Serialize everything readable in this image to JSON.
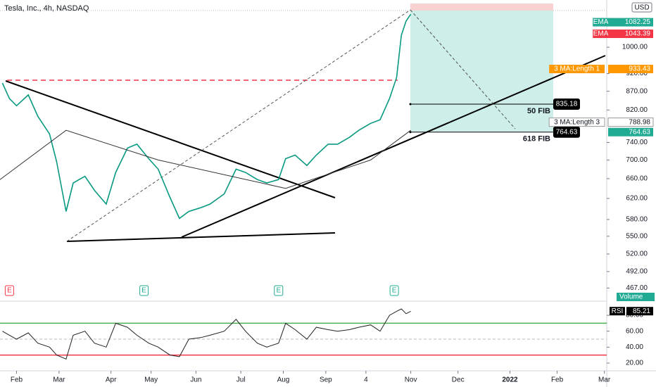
{
  "chart_data": {
    "type": "line",
    "title": "Tesla, Inc., 4h, NASDAQ",
    "currency": "USD",
    "log_scale": true,
    "xlim": [
      -7,
      250
    ],
    "xticks": [
      {
        "value": 0,
        "label": "Feb"
      },
      {
        "value": 18,
        "label": "Mar"
      },
      {
        "value": 40,
        "label": "Apr"
      },
      {
        "value": 57,
        "label": "May"
      },
      {
        "value": 76,
        "label": "Jun"
      },
      {
        "value": 95,
        "label": "Jul"
      },
      {
        "value": 113,
        "label": "Aug"
      },
      {
        "value": 131,
        "label": "Sep"
      },
      {
        "value": 148,
        "label": "4"
      },
      {
        "value": 167,
        "label": "Nov"
      },
      {
        "value": 187,
        "label": "Dec"
      },
      {
        "value": 209,
        "label": "2022"
      },
      {
        "value": 229,
        "label": "Feb"
      },
      {
        "value": 249,
        "label": "Mar"
      }
    ],
    "ylim": [
      451,
      1161
    ],
    "yticks": [
      {
        "value": 1000,
        "label": "1000.00"
      },
      {
        "value": 920,
        "label": "920.00"
      },
      {
        "value": 870,
        "label": "870.00"
      },
      {
        "value": 820,
        "label": "820.00"
      },
      {
        "value": 740,
        "label": "740.00"
      },
      {
        "value": 700,
        "label": "700.00"
      },
      {
        "value": 660,
        "label": "660.00"
      },
      {
        "value": 620,
        "label": "620.00"
      },
      {
        "value": 580,
        "label": "580.00"
      },
      {
        "value": 550,
        "label": "550.00"
      },
      {
        "value": 520,
        "label": "520.00"
      },
      {
        "value": 492,
        "label": "492.00"
      },
      {
        "value": 467,
        "label": "467.00"
      }
    ],
    "x": [
      -6,
      -3,
      0,
      5,
      9,
      14,
      17,
      21,
      24,
      29,
      33,
      38,
      42,
      47,
      51,
      56,
      60,
      65,
      69,
      73,
      78,
      82,
      88,
      93,
      97,
      102,
      106,
      111,
      114,
      118,
      123,
      127,
      132,
      136,
      141,
      145,
      150,
      154,
      158,
      161,
      163,
      165,
      167
    ],
    "series": [
      {
        "color": "#089981",
        "values": [
          893,
          850,
          831,
          860,
          804,
          760,
          696,
          595,
          651,
          665,
          636,
          609,
          673,
          727,
          736,
          703,
          680,
          622,
          582,
          595,
          602,
          609,
          629,
          680,
          673,
          658,
          651,
          658,
          703,
          711,
          688,
          711,
          736,
          736,
          752,
          769,
          786,
          795,
          850,
          909,
          1038,
          1086,
          1110
        ]
      },
      {
        "color": "#333333",
        "x": [
          -7,
          21,
          60,
          114,
          150,
          167
        ],
        "values": [
          658,
          769,
          700,
          640,
          700,
          769
        ]
      }
    ],
    "price_tags": [
      {
        "label": "EMA",
        "value": 1082.25,
        "color": "#22ab94"
      },
      {
        "label": "EMA",
        "value": 1043.39,
        "color": "#f23645"
      },
      {
        "label": "3 MA:Length 1",
        "value": 933.43,
        "color": "#ff9800"
      },
      {
        "label": "3 MA:Length 3",
        "value": 788.98,
        "color": "#ffffff"
      },
      {
        "value": 764.63,
        "color": "#22ab94"
      }
    ],
    "fib_levels": [
      {
        "label": "50 FIB",
        "value": 835.18
      },
      {
        "label": "618 FIB",
        "value": 764.63
      }
    ],
    "volume_label": "Volume",
    "earnings": {
      "label": "E",
      "x": [
        -3,
        54,
        111,
        160
      ]
    },
    "rsi": {
      "label": "RSI",
      "value": 85.21,
      "color": "#222222",
      "ylim": [
        12,
        96
      ],
      "yticks": [
        {
          "value": 80,
          "label": "80.00"
        },
        {
          "value": 60,
          "label": "60.00"
        },
        {
          "value": 40,
          "label": "40.00"
        },
        {
          "value": 20,
          "label": "20.00"
        }
      ],
      "levels": [
        {
          "value": 70,
          "color": "#4caf50"
        },
        {
          "value": 50,
          "color": "#bbbbbb"
        },
        {
          "value": 30,
          "color": "#f23645"
        }
      ],
      "values": [
        60,
        55,
        50,
        58,
        45,
        40,
        30,
        25,
        55,
        60,
        45,
        40,
        70,
        65,
        55,
        45,
        40,
        30,
        28,
        50,
        52,
        55,
        60,
        75,
        60,
        45,
        40,
        45,
        70,
        62,
        50,
        65,
        62,
        60,
        62,
        65,
        68,
        60,
        80,
        85,
        88,
        82,
        85
      ]
    }
  }
}
